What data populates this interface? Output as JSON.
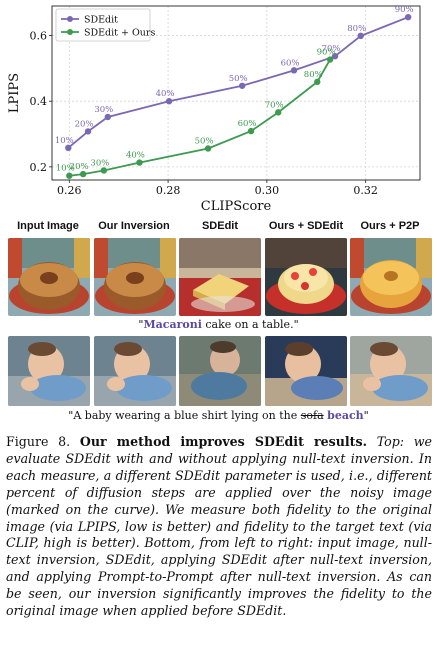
{
  "chart_data": {
    "type": "line",
    "xlabel": "CLIPScore",
    "ylabel": "LPIPS",
    "xlim": [
      0.2565,
      0.331
    ],
    "ylim": [
      0.16,
      0.69
    ],
    "xticks": [
      "0.26",
      "0.28",
      "0.30",
      "0.32"
    ],
    "yticks": [
      "0.2",
      "0.4",
      "0.6"
    ],
    "legend_position": "top-left",
    "series": [
      {
        "name": "SDEdit",
        "color": "#7b68b5",
        "points": [
          {
            "x": 0.2598,
            "y": 0.258,
            "label": "10%"
          },
          {
            "x": 0.2638,
            "y": 0.308,
            "label": "20%"
          },
          {
            "x": 0.2678,
            "y": 0.352,
            "label": "30%"
          },
          {
            "x": 0.2802,
            "y": 0.4,
            "label": "40%"
          },
          {
            "x": 0.295,
            "y": 0.447,
            "label": "50%"
          },
          {
            "x": 0.3055,
            "y": 0.494,
            "label": "60%"
          },
          {
            "x": 0.3138,
            "y": 0.537,
            "label": "70%"
          },
          {
            "x": 0.319,
            "y": 0.599,
            "label": "80%"
          },
          {
            "x": 0.3286,
            "y": 0.656,
            "label": "90%"
          }
        ]
      },
      {
        "name": "SDEdit + Ours",
        "color": "#3e9a4f",
        "points": [
          {
            "x": 0.26,
            "y": 0.173,
            "label": "10%"
          },
          {
            "x": 0.2628,
            "y": 0.178,
            "label": "20%"
          },
          {
            "x": 0.267,
            "y": 0.189,
            "label": "30%"
          },
          {
            "x": 0.2742,
            "y": 0.213,
            "label": "40%"
          },
          {
            "x": 0.2881,
            "y": 0.256,
            "label": "50%"
          },
          {
            "x": 0.2968,
            "y": 0.309,
            "label": "60%"
          },
          {
            "x": 0.3023,
            "y": 0.366,
            "label": "70%"
          },
          {
            "x": 0.3102,
            "y": 0.459,
            "label": "80%"
          },
          {
            "x": 0.3128,
            "y": 0.527,
            "label": "90%"
          }
        ]
      }
    ]
  },
  "column_headers": [
    "Input Image",
    "Our Inversion",
    "SDEdit",
    "Ours + SDEdit",
    "Ours + P2P"
  ],
  "row1_caption": {
    "pre": "\"",
    "highlight": "Macaroni",
    "post": " cake on a table.\""
  },
  "row2_caption": {
    "pre": "\"A baby wearing a blue shirt lying on the ",
    "strike": "sofa",
    "space": " ",
    "highlight": "beach",
    "post": "\""
  },
  "figure_caption": {
    "label": "Figure 8.",
    "bold": "Our method improves SDEdit results.",
    "body": "Top: we evaluate SDEdit with and without applying null-text inversion. In each measure, a different SDEdit parameter is used, i.e., different percent of diffusion steps are applied over the noisy image (marked on the curve). We measure both fidelity to the original image (via LPIPS, low is better) and fidelity to the target text (via CLIP, high is better). Bottom, from left to right: input image, null-text inversion, SDEdit, applying SDEdit after null-text inversion, and applying Prompt-to-Prompt after null-text inversion. As can be seen, our inversion significantly improves the fidelity to the original image when applied before SDEdit."
  }
}
